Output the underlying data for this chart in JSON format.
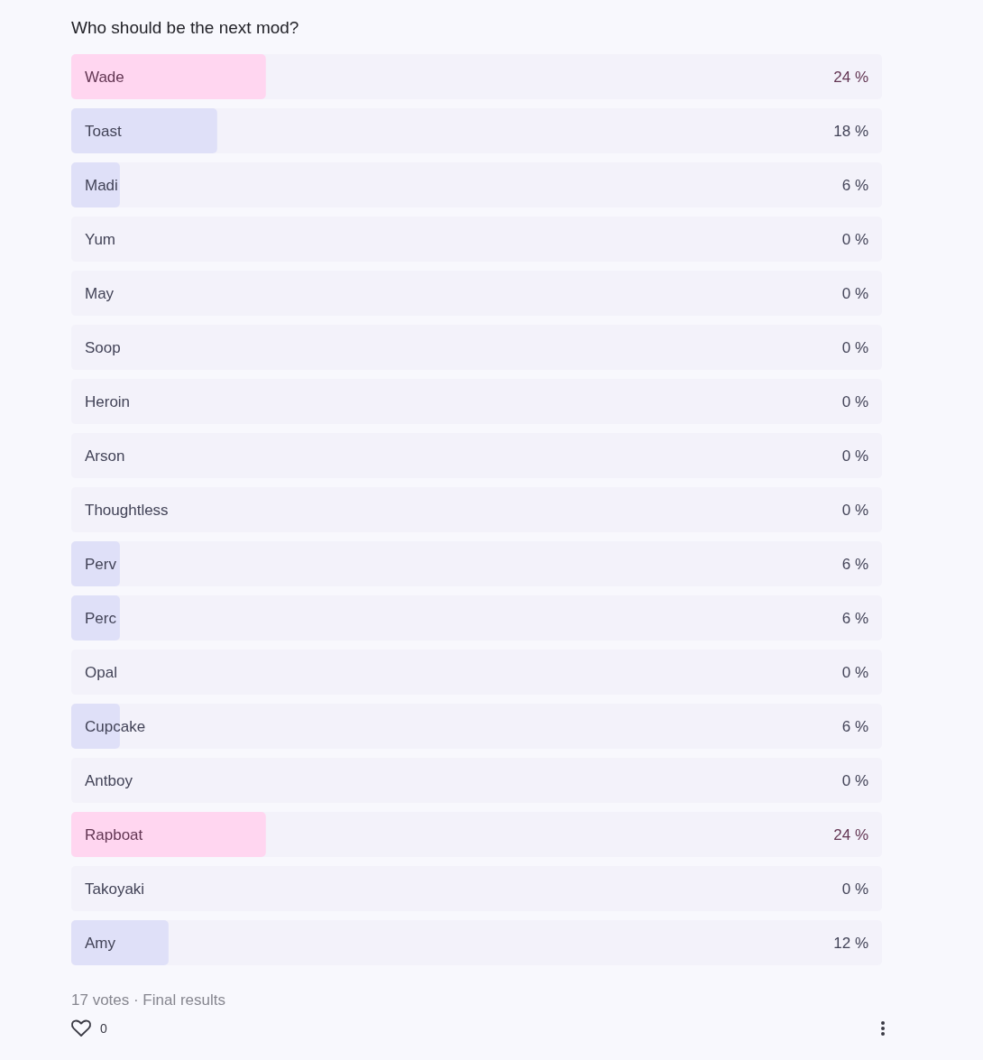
{
  "chart_data": {
    "type": "bar",
    "orientation": "horizontal",
    "title": "Who should be the next mod?",
    "categories": [
      "Wade",
      "Toast",
      "Madi",
      "Yum",
      "May",
      "Soop",
      "Heroin",
      "Arson",
      "Thoughtless",
      "Perv",
      "Perc",
      "Opal",
      "Cupcake",
      "Antboy",
      "Rapboat",
      "Takoyaki",
      "Amy"
    ],
    "values": [
      24,
      18,
      6,
      0,
      0,
      0,
      0,
      0,
      0,
      6,
      6,
      0,
      6,
      0,
      24,
      0,
      12
    ],
    "colors": [
      "#ffd6f0",
      "#dfe0f8",
      "#dfe0f8",
      "#dfe0f8",
      "#dfe0f8",
      "#dfe0f8",
      "#dfe0f8",
      "#dfe0f8",
      "#dfe0f8",
      "#dfe0f8",
      "#dfe0f8",
      "#dfe0f8",
      "#dfe0f8",
      "#dfe0f8",
      "#ffd6f0",
      "#dfe0f8",
      "#dfe0f8"
    ],
    "value_labels": [
      "24 %",
      "18 %",
      "6 %",
      "0 %",
      "0 %",
      "0 %",
      "0 %",
      "0 %",
      "0 %",
      "6 %",
      "6 %",
      "0 %",
      "6 %",
      "0 %",
      "24 %",
      "0 %",
      "12 %"
    ],
    "xlim": [
      0,
      100
    ],
    "annotations": [
      "17 votes · Final results",
      "0"
    ]
  }
}
